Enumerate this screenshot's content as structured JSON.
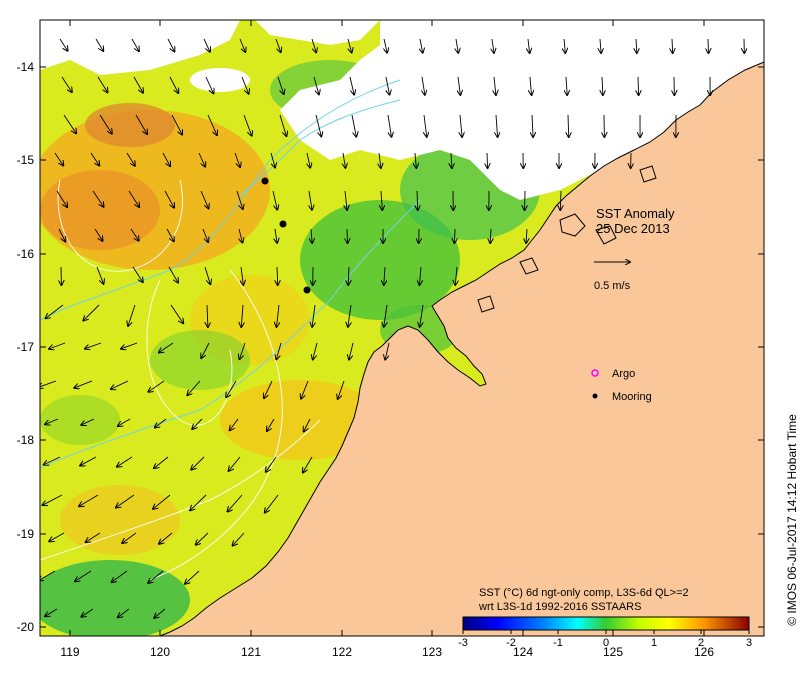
{
  "map": {
    "title": "SST Anomaly",
    "date": "25 Dec 2013",
    "scale_label": "0.5 m/s",
    "legend": {
      "argo": "Argo",
      "mooring": "Mooring"
    },
    "caption_line1": "SST (°C) 6d ngt-only comp, L3S-6d QL>=2",
    "caption_line2": "wrt L3S-1d 1992-2016 SSTAARS",
    "credit": "© IMOS 06-Jul-2017 14:12 Hobart Time",
    "lon_ticks": [
      "119",
      "120",
      "121",
      "122",
      "123",
      "124",
      "125",
      "126"
    ],
    "lat_ticks": [
      "-14",
      "-15",
      "-16",
      "-17",
      "-18",
      "-19",
      "-20"
    ],
    "colorbar_ticks": [
      "-3",
      "-2",
      "-1",
      "0",
      "1",
      "2",
      "3"
    ],
    "colors": {
      "land": "#f9c79a",
      "no_data": "#ffffff",
      "coast": "#000000",
      "current_contour": "#6fd3e8",
      "argo": "#ff00ff",
      "mooring": "#000000"
    }
  }
}
